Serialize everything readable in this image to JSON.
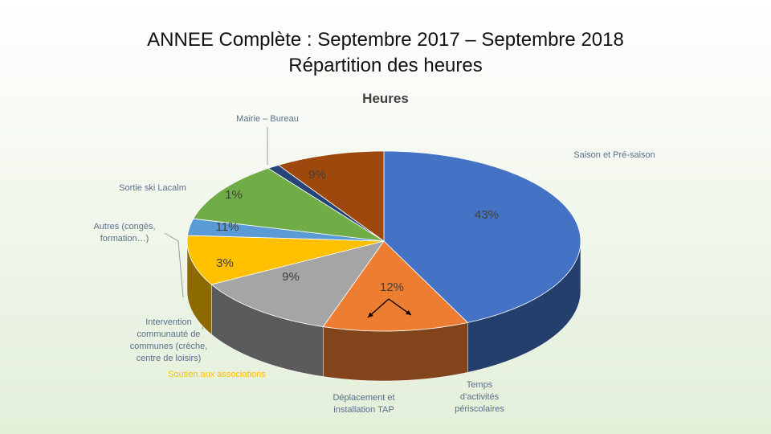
{
  "chart_data": {
    "type": "pie3d",
    "title": "ANNEE Complète : Septembre 2017 – Septembre 2018",
    "subtitle": "Répartition des heures",
    "chart_title": "Heures",
    "categories": [
      "Saison et Pré-saison",
      "Temps d’activités périscolaires",
      "Déplacement et installation TAP",
      "Soutien aux associations",
      "Intervention communauté de communes (crèche, centre de loisirs)",
      "Autres (congès, formation…)",
      "Sortie ski Lacalm",
      "Mairie – Bureau"
    ],
    "values": [
      43,
      12,
      12,
      9,
      3,
      11,
      1,
      9
    ],
    "value_labels": [
      "43%",
      "12%",
      null,
      "9%",
      "3%",
      "11%",
      "1%",
      "9%"
    ],
    "colors": [
      "#4472c4",
      "#ed7d31",
      "#a5a5a5",
      "#ffc000",
      "#5b9bd5",
      "#70ad47",
      "#264478",
      "#9e480e"
    ]
  }
}
